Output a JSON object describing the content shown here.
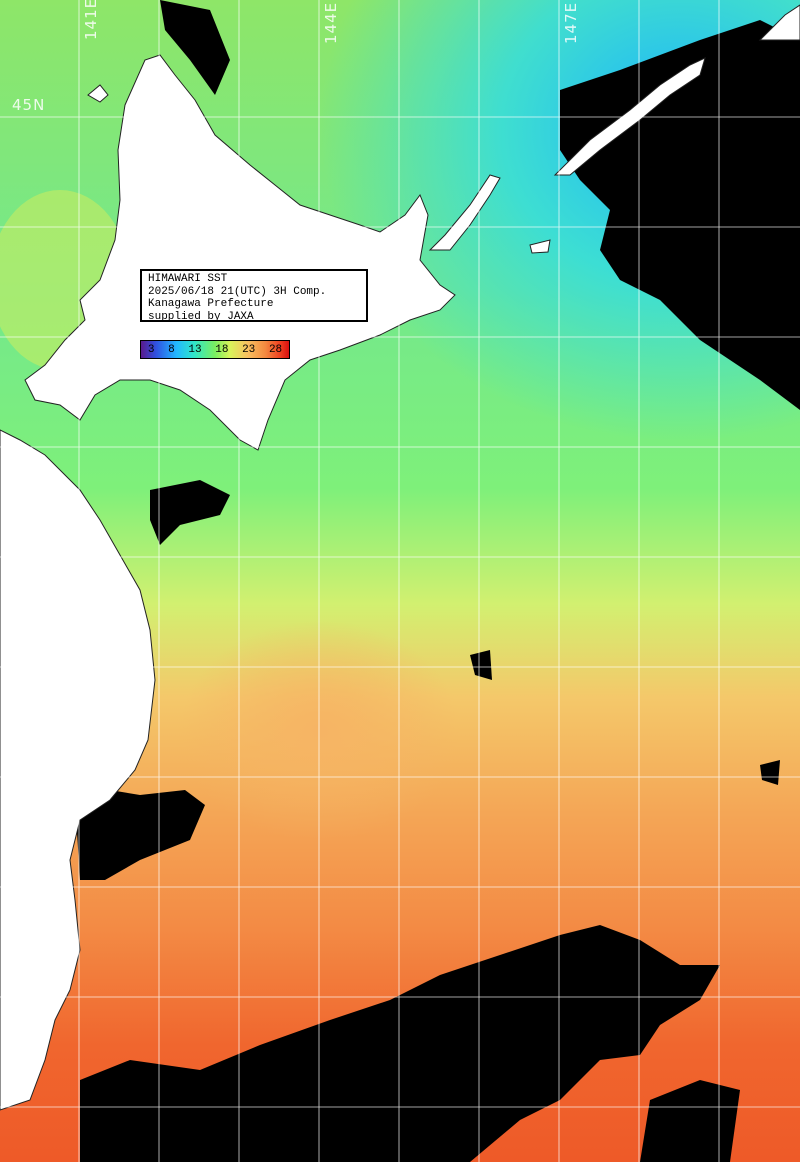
{
  "info": {
    "line1": "HIMAWARI SST",
    "line2": "2025/06/18 21(UTC) 3H Comp.",
    "line3": "Kanagawa Prefecture",
    "line4": "supplied by JAXA"
  },
  "legend": {
    "ticks": [
      "3",
      "8",
      "13",
      "18",
      "23",
      "28"
    ]
  },
  "grid_labels": {
    "lon_141": "141E",
    "lon_144": "144E",
    "lon_147": "147E",
    "lat_45": "45N"
  },
  "colors": {
    "land": "#ffffff",
    "cloud_mask": "#000000",
    "grid": "#ffffff",
    "cold_cyan": "#22d8ee",
    "mid_green": "#7aee70",
    "warm_orange": "#f6a050",
    "hot_red": "#f0502a"
  }
}
